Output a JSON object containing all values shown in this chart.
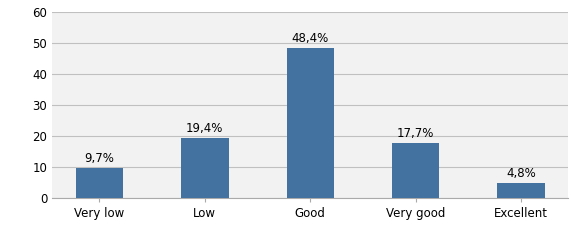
{
  "categories": [
    "Very low",
    "Low",
    "Good",
    "Very good",
    "Excellent"
  ],
  "values": [
    9.7,
    19.4,
    48.4,
    17.7,
    4.8
  ],
  "labels": [
    "9,7%",
    "19,4%",
    "48,4%",
    "17,7%",
    "4,8%"
  ],
  "bar_color": "#4472a0",
  "ylim": [
    0,
    60
  ],
  "yticks": [
    0,
    10,
    20,
    30,
    40,
    50,
    60
  ],
  "grid_color": "#c0c0c0",
  "background_color": "#ffffff",
  "plot_bg_color": "#f2f2f2",
  "label_fontsize": 8.5,
  "tick_fontsize": 8.5,
  "bar_width": 0.45,
  "figsize": [
    5.8,
    2.41
  ],
  "dpi": 100
}
